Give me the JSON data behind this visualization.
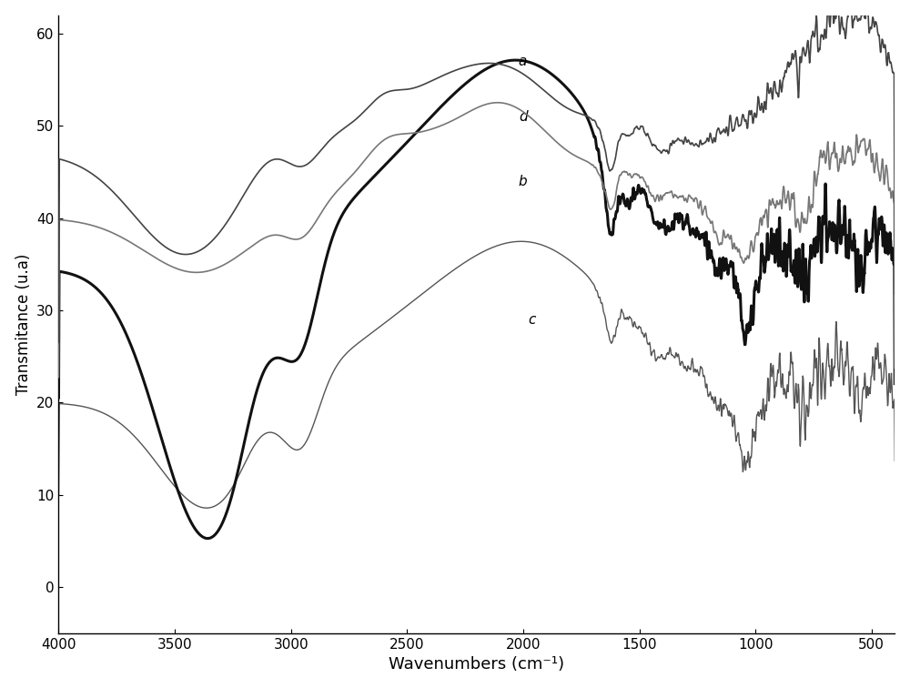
{
  "xlabel": "Wavenumbers (cm⁻¹)",
  "ylabel": "Transmitance (u.a)",
  "xmin": 4000,
  "xmax": 400,
  "ymin": -5,
  "ymax": 62,
  "yticks": [
    0,
    10,
    20,
    30,
    40,
    50,
    60
  ],
  "xticks": [
    4000,
    3500,
    3000,
    2500,
    2000,
    1500,
    1000,
    500
  ],
  "background_color": "#ffffff"
}
